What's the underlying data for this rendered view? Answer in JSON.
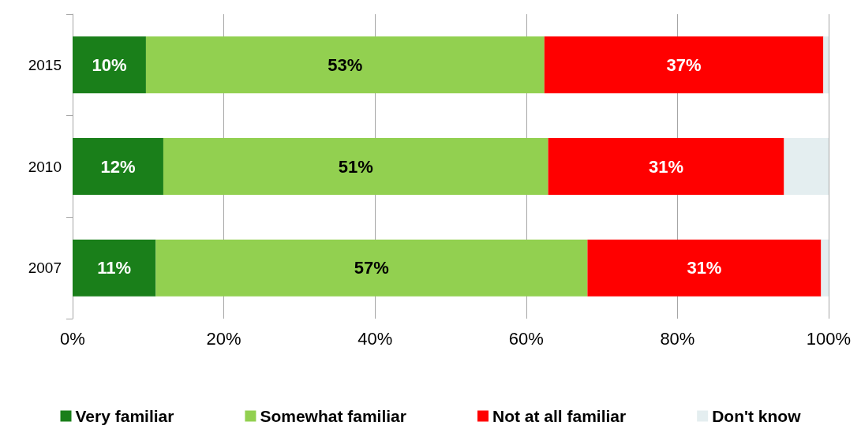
{
  "chart_data": {
    "type": "bar",
    "orientation": "horizontal",
    "stacked": true,
    "categories": [
      "2015",
      "2010",
      "2007"
    ],
    "series": [
      {
        "name": "Very familiar",
        "color": "#1a7f1a",
        "values": [
          9.7,
          12,
          11
        ],
        "value_labels": [
          "10%",
          "12%",
          "11%"
        ]
      },
      {
        "name": "Somewhat familiar",
        "color": "#92d050",
        "values": [
          52.7,
          50.9,
          57.1
        ],
        "value_labels": [
          "53%",
          "51%",
          "57%"
        ]
      },
      {
        "name": "Not at all familiar",
        "color": "#ff0000",
        "values": [
          36.9,
          31.2,
          30.9
        ],
        "value_labels": [
          "37%",
          "31%",
          "31%"
        ]
      },
      {
        "name": "Don't know",
        "color": "#e4eef0",
        "values": [
          0.7,
          5.9,
          1.0
        ],
        "value_labels": [
          null,
          null,
          null
        ]
      }
    ],
    "xlim": [
      0,
      100
    ],
    "xticks": [
      {
        "value": 0,
        "label": "0%"
      },
      {
        "value": 20,
        "label": "20%"
      },
      {
        "value": 40,
        "label": "40%"
      },
      {
        "value": 60,
        "label": "60%"
      },
      {
        "value": 80,
        "label": "80%"
      },
      {
        "value": 100,
        "label": "100%"
      }
    ],
    "grid": "x",
    "legend": "bottom"
  }
}
